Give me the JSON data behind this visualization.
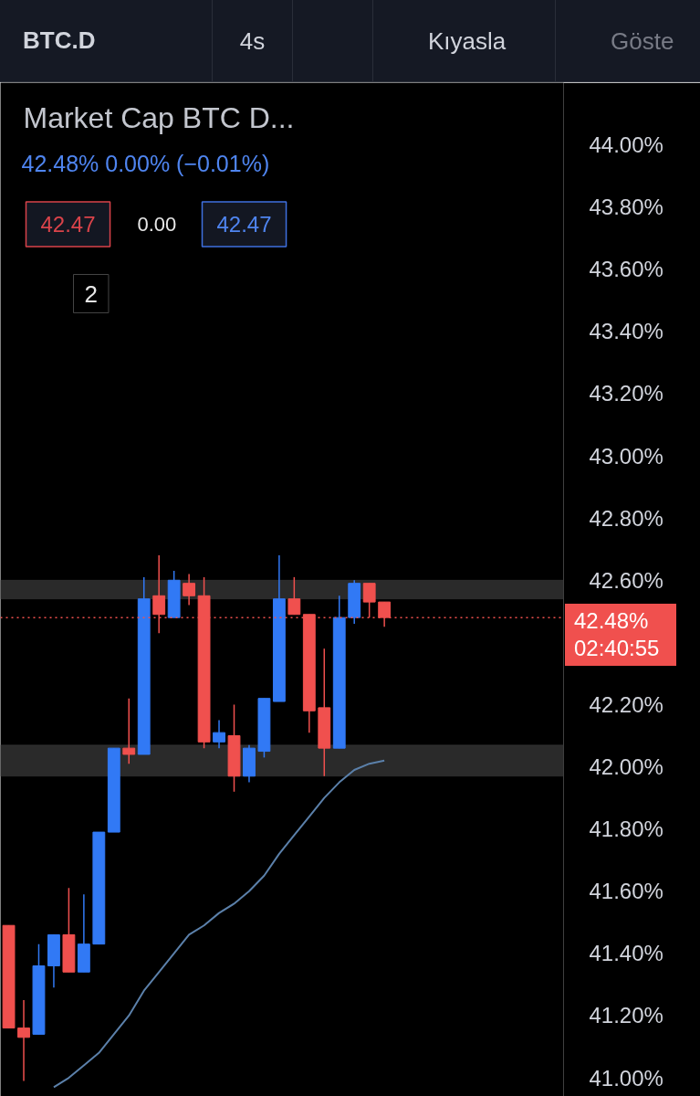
{
  "chart_data": {
    "type": "candlestick",
    "title": "Market Cap BTC D...",
    "subtitle": "42.48%  0.00% (−0.01%)",
    "annotations": [
      "BTC.D",
      "4s",
      "Kıyasla",
      "Göste",
      "42.47",
      "0.00",
      "42.47",
      "2",
      "02:40:55"
    ],
    "categories": [
      null,
      null,
      null,
      null,
      null,
      null,
      null,
      null,
      null,
      null,
      null,
      null,
      null,
      null,
      null,
      null,
      null,
      null,
      null,
      null,
      null,
      null,
      null,
      null,
      null,
      null
    ],
    "ohlc": [
      [
        41.49,
        41.49,
        41.16,
        41.16
      ],
      [
        41.16,
        41.25,
        40.99,
        41.13
      ],
      [
        41.14,
        41.43,
        41.14,
        41.36
      ],
      [
        41.36,
        41.46,
        41.29,
        41.46
      ],
      [
        41.46,
        41.61,
        41.34,
        41.34
      ],
      [
        41.34,
        41.59,
        41.34,
        41.43
      ],
      [
        41.43,
        41.79,
        41.43,
        41.79
      ],
      [
        41.79,
        42.06,
        41.79,
        42.06
      ],
      [
        42.06,
        42.22,
        42.01,
        42.04
      ],
      [
        42.04,
        42.61,
        42.04,
        42.54
      ],
      [
        42.55,
        42.68,
        42.43,
        42.49
      ],
      [
        42.48,
        42.63,
        42.48,
        42.6
      ],
      [
        42.59,
        42.62,
        42.52,
        42.55
      ],
      [
        42.55,
        42.61,
        42.06,
        42.08
      ],
      [
        42.08,
        42.15,
        42.06,
        42.11
      ],
      [
        42.1,
        42.2,
        41.92,
        41.97
      ],
      [
        41.97,
        42.07,
        41.95,
        42.06
      ],
      [
        42.05,
        42.22,
        42.03,
        42.22
      ],
      [
        42.21,
        42.68,
        42.21,
        42.54
      ],
      [
        42.54,
        42.61,
        42.49,
        42.49
      ],
      [
        42.49,
        42.49,
        42.11,
        42.18
      ],
      [
        42.19,
        42.38,
        41.97,
        42.06
      ],
      [
        42.06,
        42.55,
        42.06,
        42.48
      ],
      [
        42.48,
        42.6,
        42.46,
        42.59
      ],
      [
        42.59,
        42.59,
        42.48,
        42.53
      ],
      [
        42.53,
        42.53,
        42.45,
        42.48
      ]
    ],
    "colors": [
      "#f0504e",
      "#f0504e",
      "#3179f5",
      "#3179f5",
      "#f0504e",
      "#3179f5",
      "#3179f5",
      "#3179f5",
      "#f0504e",
      "#3179f5",
      "#f0504e",
      "#3179f5",
      "#f0504e",
      "#f0504e",
      "#3179f5",
      "#f0504e",
      "#3179f5",
      "#3179f5",
      "#3179f5",
      "#f0504e",
      "#f0504e",
      "#f0504e",
      "#3179f5",
      "#3179f5",
      "#f0504e",
      "#f0504e"
    ],
    "series": [
      {
        "type": "line",
        "color": "#5b80aa",
        "values": [
          null,
          null,
          null,
          40.97,
          41.0,
          41.04,
          41.08,
          41.14,
          41.2,
          41.28,
          41.34,
          41.4,
          41.46,
          41.49,
          41.53,
          41.56,
          41.6,
          41.65,
          41.72,
          41.78,
          41.84,
          41.9,
          41.95,
          41.99,
          42.01,
          42.02
        ]
      }
    ],
    "ylim": [
      40.94,
      44.2
    ],
    "yticks": [
      {
        "value": 41.0,
        "label": "41.00%"
      },
      {
        "value": 41.2,
        "label": "41.20%"
      },
      {
        "value": 41.4,
        "label": "41.40%"
      },
      {
        "value": 41.6,
        "label": "41.60%"
      },
      {
        "value": 41.8,
        "label": "41.80%"
      },
      {
        "value": 42.0,
        "label": "42.00%"
      },
      {
        "value": 42.2,
        "label": "42.20%"
      },
      {
        "value": 42.6,
        "label": "42.60%"
      },
      {
        "value": 42.8,
        "label": "42.80%"
      },
      {
        "value": 43.0,
        "label": "43.00%"
      },
      {
        "value": 43.2,
        "label": "43.20%"
      },
      {
        "value": 43.4,
        "label": "43.40%"
      },
      {
        "value": 43.6,
        "label": "43.60%"
      },
      {
        "value": 43.8,
        "label": "43.80%"
      },
      {
        "value": 44.0,
        "label": "44.00%"
      }
    ],
    "tick_labels": "y",
    "ref_lines": [
      {
        "axis": "y",
        "value": 42.48,
        "label": "42.48%",
        "color": "#f0504e",
        "line_style": "dotted"
      }
    ],
    "bands": [
      {
        "axis": "y",
        "from": 42.54,
        "to": 42.6,
        "color": "#2a2a2a"
      },
      {
        "axis": "y",
        "from": 41.97,
        "to": 42.07,
        "color": "#2a2a2a"
      }
    ]
  }
}
